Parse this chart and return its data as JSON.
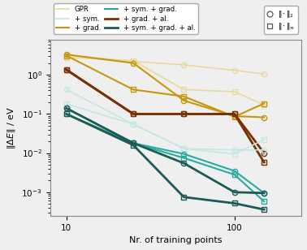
{
  "xlabel": "Nr. of training points",
  "ylabel": "$\\|\\Delta E\\|$ / eV",
  "xlim": [
    8,
    250
  ],
  "ylim": [
    0.00025,
    8.0
  ],
  "background": "#efefef",
  "series": [
    {
      "label": "GPR_2",
      "color": "#e8d9a0",
      "linewidth": 1.2,
      "marker": "o",
      "x": [
        10,
        25,
        50,
        100,
        150
      ],
      "y": [
        3.2,
        2.2,
        1.8,
        1.3,
        1.05
      ]
    },
    {
      "label": "GPR_inf",
      "color": "#e8d9a0",
      "linewidth": 1.2,
      "marker": "s",
      "x": [
        10,
        25,
        50,
        100,
        150
      ],
      "y": [
        2.8,
        2.3,
        0.42,
        0.37,
        0.17
      ]
    },
    {
      "label": "grad_2",
      "color": "#c8960c",
      "linewidth": 1.5,
      "marker": "o",
      "x": [
        10,
        25,
        50,
        100,
        150
      ],
      "y": [
        3.3,
        2.0,
        0.22,
        0.088,
        0.082
      ]
    },
    {
      "label": "grad_inf",
      "color": "#c8960c",
      "linewidth": 1.5,
      "marker": "s",
      "x": [
        10,
        25,
        50,
        100,
        150
      ],
      "y": [
        3.1,
        0.42,
        0.28,
        0.085,
        0.185
      ]
    },
    {
      "label": "grad_al_2",
      "color": "#7a3000",
      "linewidth": 2.0,
      "marker": "o",
      "x": [
        10,
        25,
        50,
        100,
        150
      ],
      "y": [
        1.35,
        0.1,
        0.1,
        0.1,
        0.01
      ]
    },
    {
      "label": "grad_al_inf",
      "color": "#7a3000",
      "linewidth": 2.0,
      "marker": "s",
      "x": [
        10,
        25,
        50,
        100,
        150
      ],
      "y": [
        1.35,
        0.1,
        0.1,
        0.1,
        0.0058
      ]
    },
    {
      "label": "sym_2",
      "color": "#c2e8e5",
      "linewidth": 1.2,
      "marker": "o",
      "x": [
        10,
        25,
        50,
        100,
        150
      ],
      "y": [
        0.42,
        0.055,
        0.013,
        0.012,
        0.012
      ]
    },
    {
      "label": "sym_inf",
      "color": "#c2e8e5",
      "linewidth": 1.2,
      "marker": "s",
      "x": [
        10,
        25,
        50,
        100,
        150
      ],
      "y": [
        0.18,
        0.055,
        0.013,
        0.0095,
        0.022
      ]
    },
    {
      "label": "sym_grad_2",
      "color": "#2aaba0",
      "linewidth": 1.5,
      "marker": "o",
      "x": [
        10,
        25,
        50,
        100,
        150
      ],
      "y": [
        0.14,
        0.018,
        0.0095,
        0.0035,
        0.00095
      ]
    },
    {
      "label": "sym_grad_inf",
      "color": "#2aaba0",
      "linewidth": 1.5,
      "marker": "s",
      "x": [
        10,
        25,
        50,
        100,
        150
      ],
      "y": [
        0.1,
        0.018,
        0.0075,
        0.0028,
        0.00058
      ]
    },
    {
      "label": "sym_grad_al_2",
      "color": "#1a5c55",
      "linewidth": 2.0,
      "marker": "o",
      "x": [
        10,
        25,
        50,
        100,
        150
      ],
      "y": [
        0.14,
        0.018,
        0.0055,
        0.001,
        0.00095
      ]
    },
    {
      "label": "sym_grad_al_inf",
      "color": "#1a5c55",
      "linewidth": 2.0,
      "marker": "s",
      "x": [
        10,
        25,
        50,
        100,
        150
      ],
      "y": [
        0.1,
        0.016,
        0.00075,
        0.00052,
        0.00036
      ]
    }
  ],
  "legend_entries": [
    {
      "label": "GPR",
      "color": "#e8d9a0",
      "lw": 1.2
    },
    {
      "label": "+ sym.",
      "color": "#c2e8e5",
      "lw": 1.2
    },
    {
      "label": "+ grad.",
      "color": "#c8960c",
      "lw": 1.5
    },
    {
      "label": "+ sym. + grad.",
      "color": "#2aaba0",
      "lw": 1.5
    },
    {
      "label": "+ grad. + al.",
      "color": "#7a3000",
      "lw": 2.0
    },
    {
      "label": "+ sym. + grad. + al.",
      "color": "#1a5c55",
      "lw": 2.0
    }
  ],
  "marker_legend": [
    {
      "label": "$\\|\\cdot\\|_2$",
      "marker": "o"
    },
    {
      "label": "$\\|\\cdot\\|_\\infty$",
      "marker": "s"
    }
  ]
}
